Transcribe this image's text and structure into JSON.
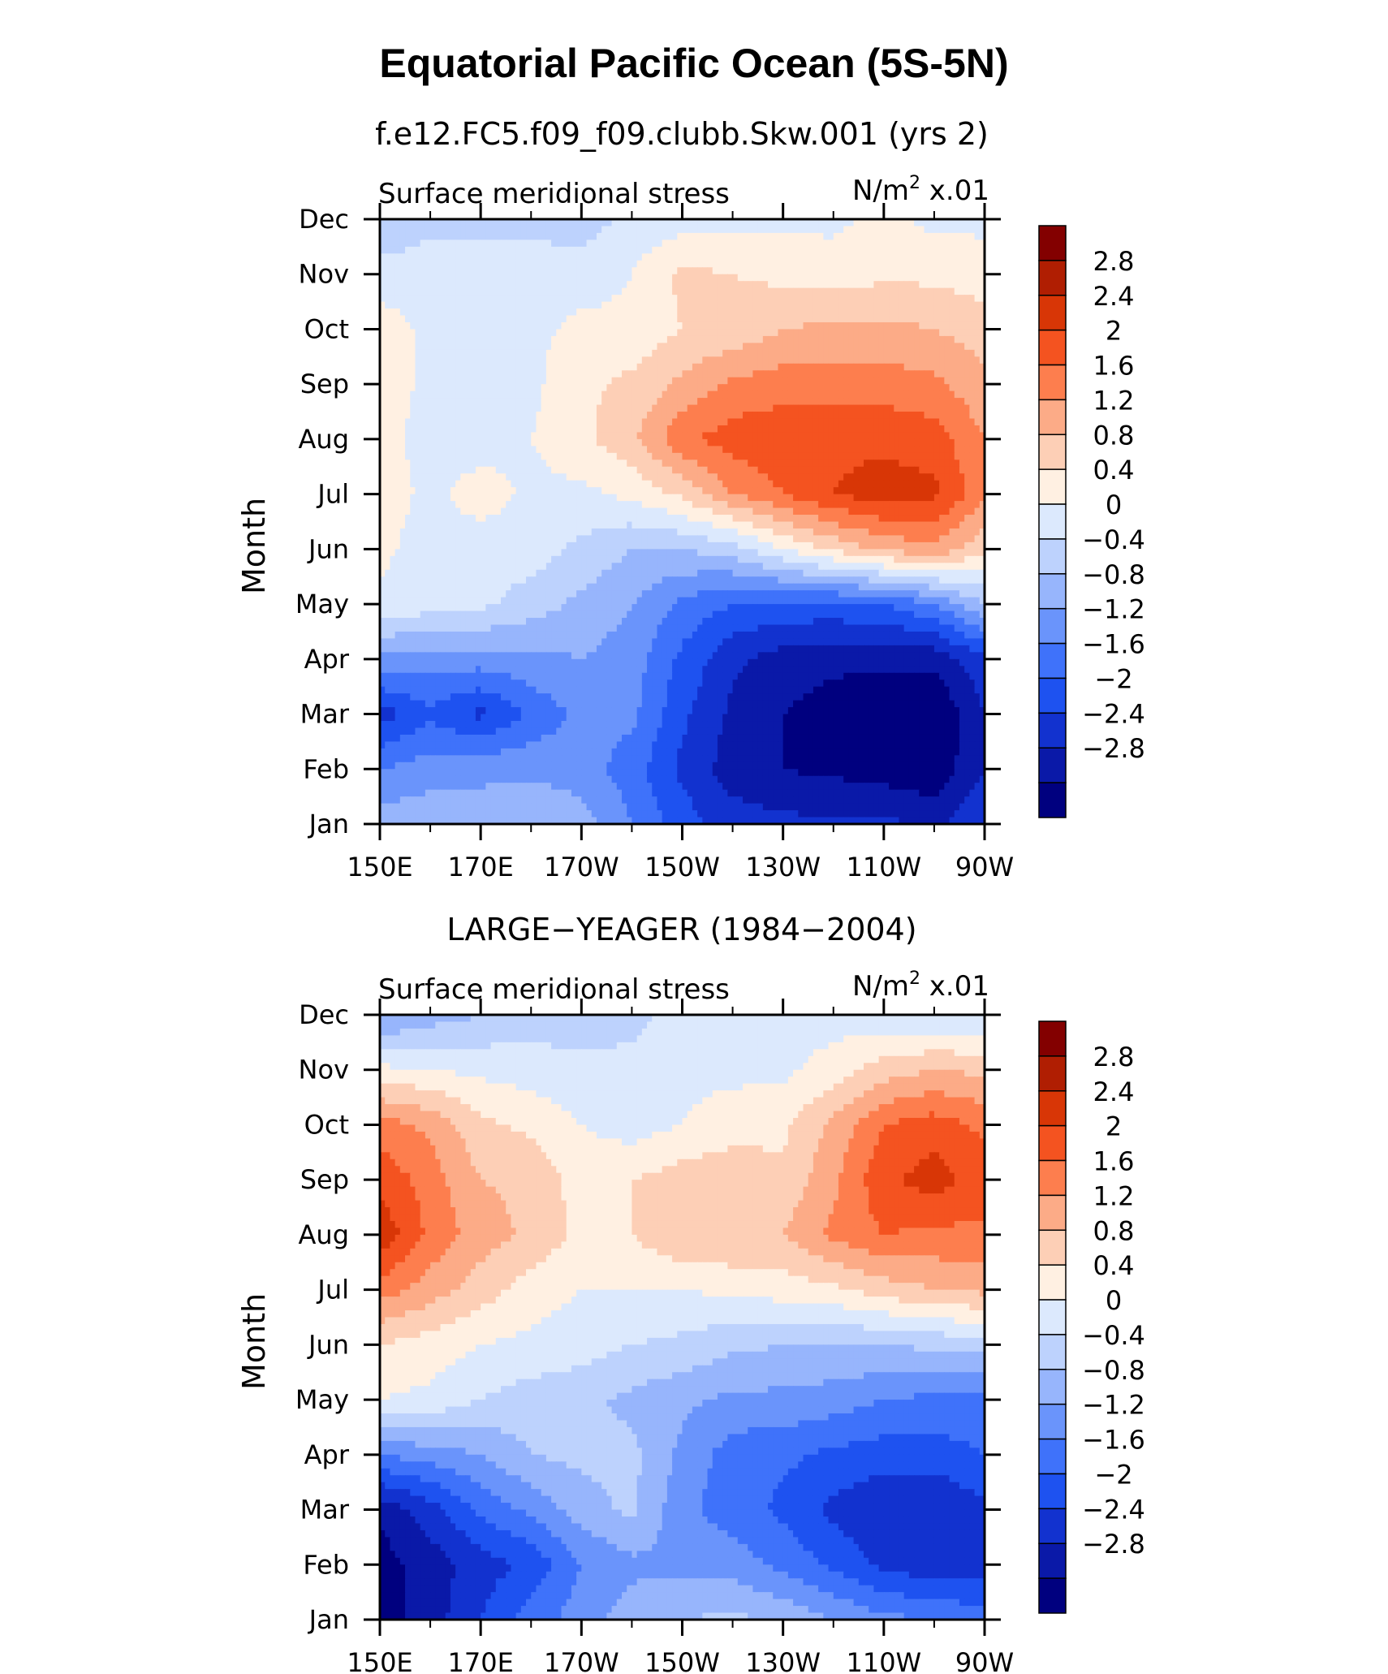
{
  "figure": {
    "title": "Equatorial Pacific Ocean (5S-5N)"
  },
  "colors": {
    "levels": [
      -2.8,
      -2.4,
      -2.0,
      -1.6,
      -1.2,
      -0.8,
      -0.4,
      0,
      0.4,
      0.8,
      1.2,
      1.6,
      2.0,
      2.4,
      2.8
    ],
    "fills": [
      "#00007f",
      "#0a19a8",
      "#1232cf",
      "#1e52f0",
      "#3f72fa",
      "#6a94fb",
      "#97b5fc",
      "#bdd2fd",
      "#dce9fd",
      "#fff0e2",
      "#fdcfb6",
      "#fcab87",
      "#fd7e4e",
      "#f45320",
      "#d83606",
      "#b01e02",
      "#830000"
    ]
  },
  "chart_data": [
    {
      "type": "heatmap",
      "subtitle": "f.e12.FC5.f09_f09.clubb.Skw.001 (yrs 2)",
      "left_label": "Surface meridional stress",
      "right_label_main": "N/m",
      "right_label_sup": "2",
      "right_label_tail": " x.01",
      "ylabel": "Month",
      "x_ticks": [
        "150E",
        "170E",
        "170W",
        "150W",
        "130W",
        "110W",
        "90W"
      ],
      "x_tick_lon": [
        150,
        170,
        190,
        210,
        230,
        250,
        270
      ],
      "xlim": [
        150,
        270
      ],
      "y_ticks": [
        "Jan",
        "Feb",
        "Mar",
        "Apr",
        "May",
        "Jun",
        "Jul",
        "Aug",
        "Sep",
        "Oct",
        "Nov",
        "Dec"
      ],
      "ylim": [
        1,
        12
      ],
      "colorbar_labels": [
        "2.8",
        "2.4",
        "2",
        "1.6",
        "1.2",
        "0.8",
        "0.4",
        "0",
        "−0.4",
        "−0.8",
        "−1.2",
        "−1.6",
        "−2",
        "−2.4",
        "−2.8"
      ],
      "lon": [
        150,
        160,
        170,
        180,
        190,
        200,
        210,
        220,
        230,
        240,
        250,
        260,
        270
      ],
      "month": [
        1,
        2,
        3,
        4,
        5,
        6,
        7,
        8,
        9,
        10,
        11,
        12
      ],
      "values": [
        [
          -0.6,
          -0.5,
          -0.6,
          -0.4,
          -0.6,
          -1.2,
          -1.8,
          -2.2,
          -2.3,
          -2.3,
          -2.3,
          -2.5,
          -2.0
        ],
        [
          -1.2,
          -1.0,
          -0.9,
          -0.9,
          -1.0,
          -1.4,
          -2.1,
          -2.6,
          -2.8,
          -2.9,
          -3.0,
          -3.1,
          -2.4
        ],
        [
          -2.2,
          -1.7,
          -2.1,
          -1.5,
          -1.1,
          -1.1,
          -1.9,
          -2.5,
          -2.8,
          -3.0,
          -3.1,
          -3.2,
          -2.4
        ],
        [
          -0.9,
          -1.0,
          -1.0,
          -0.9,
          -0.8,
          -1.0,
          -1.7,
          -2.3,
          -2.6,
          -2.7,
          -2.7,
          -2.7,
          -2.1
        ],
        [
          0.3,
          0.2,
          0.1,
          -0.2,
          -0.5,
          -0.8,
          -1.3,
          -1.6,
          -1.7,
          -1.7,
          -1.6,
          -1.2,
          -0.4
        ],
        [
          0.5,
          0.2,
          0.2,
          0.2,
          -0.1,
          -0.4,
          -0.4,
          -0.2,
          0.4,
          0.9,
          1.3,
          1.5,
          0.9
        ],
        [
          0.6,
          0.3,
          0.6,
          0.3,
          0.3,
          0.5,
          0.9,
          1.6,
          2.0,
          2.4,
          2.6,
          2.5,
          1.7
        ],
        [
          0.6,
          0.2,
          0.2,
          0.4,
          0.7,
          1.1,
          1.9,
          2.2,
          2.3,
          2.3,
          2.3,
          2.2,
          1.6
        ],
        [
          0.6,
          0.3,
          0.3,
          0.3,
          0.7,
          0.9,
          1.3,
          1.7,
          1.8,
          1.8,
          1.8,
          1.7,
          1.3
        ],
        [
          0.6,
          0.3,
          0.3,
          0.3,
          0.5,
          0.5,
          0.8,
          0.9,
          1.2,
          1.3,
          1.3,
          1.2,
          1.0
        ],
        [
          0.2,
          0.2,
          0.3,
          0.3,
          0.2,
          0.4,
          0.9,
          0.8,
          0.7,
          0.6,
          0.7,
          0.7,
          0.6
        ],
        [
          -0.4,
          -0.1,
          -0.2,
          -0.2,
          -0.2,
          0.1,
          0.2,
          0.3,
          0.3,
          0.3,
          0.5,
          0.3,
          0.3
        ]
      ]
    },
    {
      "type": "heatmap",
      "subtitle": "LARGE−YEAGER (1984−2004)",
      "left_label": "Surface meridional stress",
      "right_label_main": "N/m",
      "right_label_sup": "2",
      "right_label_tail": " x.01",
      "ylabel": "Month",
      "x_ticks": [
        "150E",
        "170E",
        "170W",
        "150W",
        "130W",
        "110W",
        "90W"
      ],
      "x_tick_lon": [
        150,
        170,
        190,
        210,
        230,
        250,
        270
      ],
      "xlim": [
        150,
        270
      ],
      "y_ticks": [
        "Jan",
        "Feb",
        "Mar",
        "Apr",
        "May",
        "Jun",
        "Jul",
        "Aug",
        "Sep",
        "Oct",
        "Nov",
        "Dec"
      ],
      "ylim": [
        1,
        12
      ],
      "colorbar_labels": [
        "2.8",
        "2.4",
        "2",
        "1.6",
        "1.2",
        "0.8",
        "0.4",
        "0",
        "−0.4",
        "−0.8",
        "−1.2",
        "−1.6",
        "−2",
        "−2.4",
        "−2.8"
      ],
      "lon": [
        150,
        160,
        170,
        180,
        190,
        200,
        210,
        220,
        230,
        240,
        250,
        260,
        270
      ],
      "month": [
        1,
        2,
        3,
        4,
        5,
        6,
        7,
        8,
        9,
        10,
        11,
        12
      ],
      "values": [
        [
          -3.0,
          -2.6,
          -2.0,
          -1.4,
          -1.0,
          -0.6,
          -0.4,
          -0.3,
          -0.5,
          -0.8,
          -1.1,
          -1.2,
          -1.4
        ],
        [
          -3.0,
          -2.6,
          -2.2,
          -1.9,
          -1.2,
          -0.9,
          -0.9,
          -1.0,
          -1.3,
          -1.7,
          -2.1,
          -2.3,
          -2.2
        ],
        [
          -2.7,
          -2.2,
          -1.5,
          -1.1,
          -0.6,
          -0.3,
          -1.1,
          -1.4,
          -1.7,
          -2.1,
          -2.4,
          -2.4,
          -2.1
        ],
        [
          -1.2,
          -1.0,
          -0.8,
          -0.4,
          -0.3,
          -0.3,
          -0.9,
          -1.4,
          -1.5,
          -1.7,
          -1.8,
          -1.8,
          -1.6
        ],
        [
          0.4,
          0.3,
          0.0,
          -0.2,
          -0.3,
          -0.5,
          -0.7,
          -0.9,
          -0.9,
          -1.0,
          -1.2,
          -1.3,
          -1.3
        ],
        [
          0.8,
          0.6,
          0.4,
          0.3,
          0.2,
          0.0,
          -0.1,
          -0.3,
          -0.4,
          -0.4,
          -0.4,
          -0.3,
          -0.2
        ],
        [
          1.8,
          1.4,
          1.0,
          0.6,
          0.4,
          0.4,
          0.4,
          0.5,
          0.6,
          0.7,
          1.0,
          1.2,
          1.3
        ],
        [
          2.7,
          1.9,
          1.4,
          1.1,
          0.7,
          0.8,
          1.2,
          1.2,
          1.2,
          1.7,
          2.0,
          1.9,
          1.9
        ],
        [
          2.3,
          1.8,
          1.2,
          1.1,
          0.6,
          0.8,
          1.0,
          1.1,
          0.9,
          1.5,
          2.3,
          2.6,
          2.2
        ],
        [
          1.8,
          1.5,
          0.9,
          0.7,
          0.4,
          0.2,
          0.4,
          0.6,
          0.7,
          1.3,
          2.0,
          2.2,
          1.9
        ],
        [
          0.5,
          0.4,
          0.3,
          0.2,
          0.1,
          0.1,
          0.3,
          0.3,
          0.3,
          0.6,
          1.0,
          1.2,
          1.1
        ],
        [
          -0.9,
          -0.6,
          -0.4,
          -0.2,
          -0.2,
          -0.1,
          0.1,
          0.2,
          0.2,
          0.2,
          0.1,
          0.0,
          0.0
        ]
      ]
    }
  ]
}
